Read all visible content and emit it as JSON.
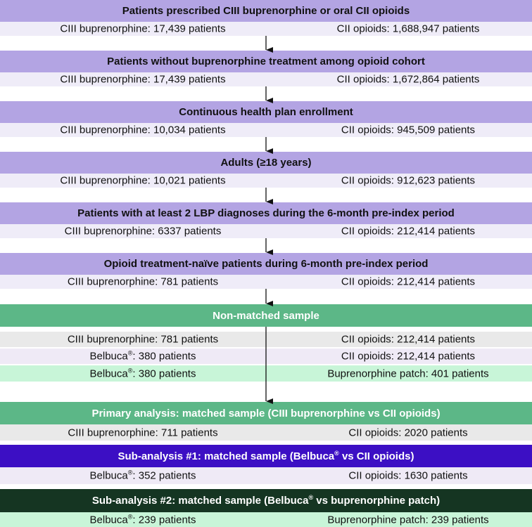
{
  "stages": [
    {
      "title": "Patients prescribed CIII buprenorphine or oral CII opioids",
      "left": "CIII buprenorphine: 17,439 patients",
      "right": "CII opioids: 1,688,947 patients"
    },
    {
      "title": "Patients without buprenorphine treatment among opioid cohort",
      "left": "CIII buprenorphine: 17,439 patients",
      "right": "CII opioids: 1,672,864 patients"
    },
    {
      "title": "Continuous health plan enrollment",
      "left": "CIII buprenorphine: 10,034 patients",
      "right": "CII opioids: 945,509 patients"
    },
    {
      "title": "Adults (≥18 years)",
      "left": "CIII buprenorphine: 10,021 patients",
      "right": "CII opioids: 912,623 patients"
    },
    {
      "title": "Patients with at least 2 LBP diagnoses during the 6-month pre-index period",
      "left": "CIII buprenorphine: 6337 patients",
      "right": "CII opioids: 212,414 patients"
    },
    {
      "title": "Opioid treatment-naïve patients during 6-month pre-index period",
      "left": "CIII buprenorphine: 781 patients",
      "right": "CII opioids: 212,414 patients"
    }
  ],
  "nonmatched": {
    "title": "Non-matched sample",
    "rows": [
      {
        "left": "CIII buprenorphine: 781 patients",
        "right": "CII opioids: 212,414 patients"
      },
      {
        "left_pre": "Belbuca",
        "left_post": ": 380 patients",
        "right": "CII opioids: 212,414 patients"
      },
      {
        "left_pre": "Belbuca",
        "left_post": ": 380 patients",
        "right": "Buprenorphine patch: 401 patients"
      }
    ]
  },
  "primary": {
    "title": "Primary analysis: matched sample (CIII buprenorphine vs CII opioids)",
    "left": "CIII buprenorphine: 711 patients",
    "right": "CII opioids: 2020 patients"
  },
  "sub1": {
    "title_pre": "Sub-analysis #1: matched sample (Belbuca",
    "title_post": " vs CII opioids)",
    "left_pre": "Belbuca",
    "left_post": ": 352 patients",
    "right": "CII opioids: 1630 patients"
  },
  "sub2": {
    "title_pre": "Sub-analysis #2: matched sample (Belbuca",
    "title_post": " vs buprenorphine patch)",
    "left_pre": "Belbuca",
    "left_post": ": 239 patients",
    "right": "Buprenorphine patch: 239 patients"
  },
  "registered_mark": "®",
  "colors": {
    "stage_bar": "#b3a4e3",
    "stage_row": "#efecf8",
    "sample_bar": "#5cb787",
    "sub1_bar": "#3c0fc4",
    "sub2_bar": "#153522",
    "arrow": "#111111"
  }
}
